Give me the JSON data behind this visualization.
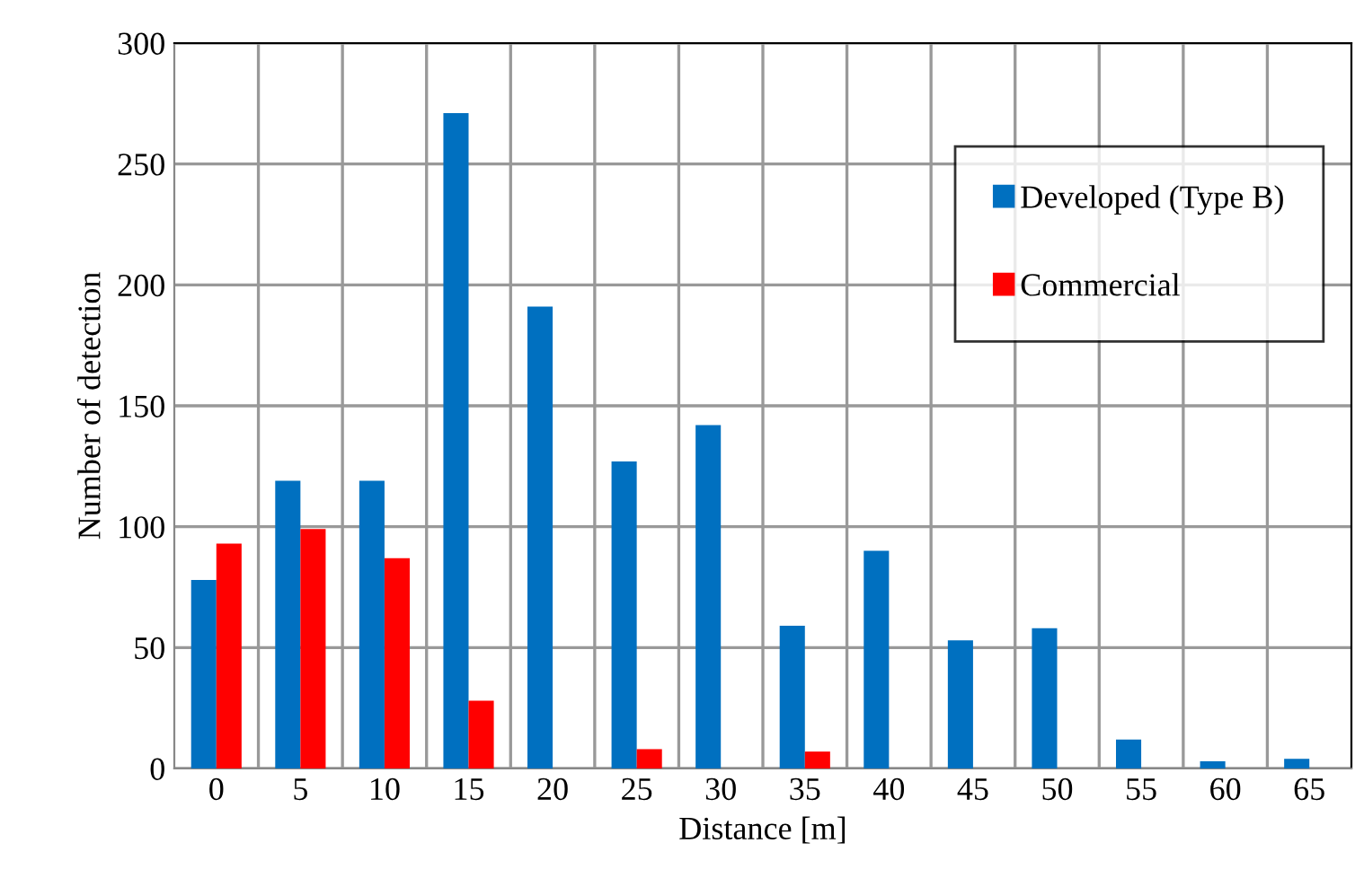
{
  "chart_data": {
    "type": "bar",
    "xlabel": "Distance [m]",
    "ylabel": "Number of detection",
    "categories": [
      "0",
      "5",
      "10",
      "15",
      "20",
      "25",
      "30",
      "35",
      "40",
      "45",
      "50",
      "55",
      "60",
      "65"
    ],
    "series": [
      {
        "name": "Developed (Type B)",
        "color": "#0070c0",
        "values": [
          78,
          119,
          119,
          271,
          191,
          127,
          142,
          59,
          90,
          53,
          58,
          12,
          3,
          4
        ]
      },
      {
        "name": "Commercial",
        "color": "#ff0000",
        "values": [
          93,
          99,
          87,
          28,
          0,
          8,
          0,
          7,
          0,
          0,
          0,
          0,
          0,
          0
        ]
      }
    ],
    "ylim": [
      0,
      300
    ],
    "yticks": [
      0,
      50,
      100,
      150,
      200,
      250,
      300
    ],
    "grid": true,
    "legend": "top right"
  }
}
